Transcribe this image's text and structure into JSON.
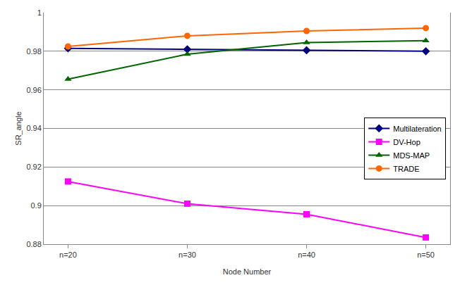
{
  "chart_data": {
    "type": "line",
    "x_label": "Node Number",
    "y_label": "SR_angle",
    "categories": [
      "n=20",
      "n=30",
      "n=40",
      "n=50"
    ],
    "series": [
      {
        "name": "Multilateration",
        "color": "#000080",
        "marker": "diamond",
        "line_style": "solid",
        "values": [
          0.9815,
          0.981,
          0.9805,
          0.98
        ]
      },
      {
        "name": "DV-Hop",
        "color": "#ff00ff",
        "marker": "square",
        "line_style": "solid",
        "values": [
          0.9125,
          0.901,
          0.8955,
          0.8835
        ]
      },
      {
        "name": "MDS-MAP",
        "color": "#006400",
        "marker": "triangle-up",
        "line_style": "solid",
        "values": [
          0.9655,
          0.9785,
          0.9845,
          0.9855
        ]
      },
      {
        "name": "TRADE",
        "color": "#ff6600",
        "marker": "circle",
        "line_style": "solid",
        "values": [
          0.9825,
          0.988,
          0.9905,
          0.992
        ]
      }
    ],
    "ylim": [
      0.88,
      1
    ],
    "yticks": [
      0.88,
      0.9,
      0.92,
      0.94,
      0.96,
      0.98,
      1
    ],
    "grid": true,
    "legend": "lower right"
  }
}
